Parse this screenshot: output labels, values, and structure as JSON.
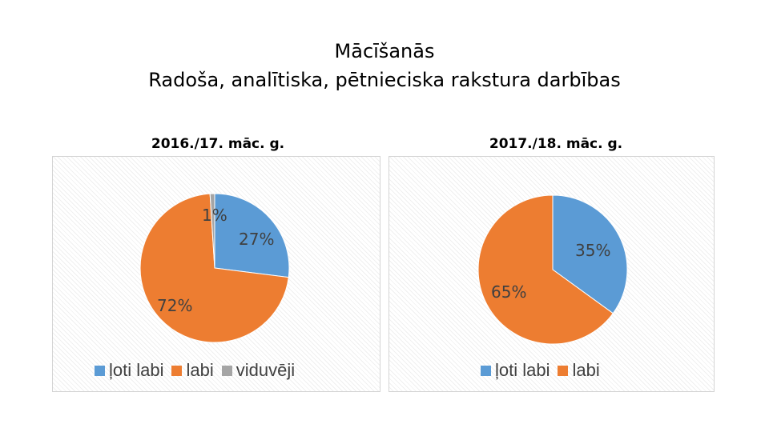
{
  "title": {
    "line1": "Mācīšanās",
    "line2": "Radoša, analītiska, pētnieciska rakstura darbības"
  },
  "chart_data": [
    {
      "type": "pie",
      "title": "2016./17. māc. g.",
      "categories": [
        "ļoti labi",
        "labi",
        "viduvēji"
      ],
      "values": [
        27,
        72,
        1
      ],
      "labels": [
        "27%",
        "72%",
        "1%"
      ],
      "colors": [
        "#5b9bd5",
        "#ed7d31",
        "#a5a5a5"
      ],
      "legend": "bottom"
    },
    {
      "type": "pie",
      "title": "2017./18. māc. g.",
      "categories": [
        "ļoti labi",
        "labi"
      ],
      "values": [
        35,
        65
      ],
      "labels": [
        "35%",
        "65%"
      ],
      "colors": [
        "#5b9bd5",
        "#ed7d31"
      ],
      "legend": "bottom"
    }
  ]
}
